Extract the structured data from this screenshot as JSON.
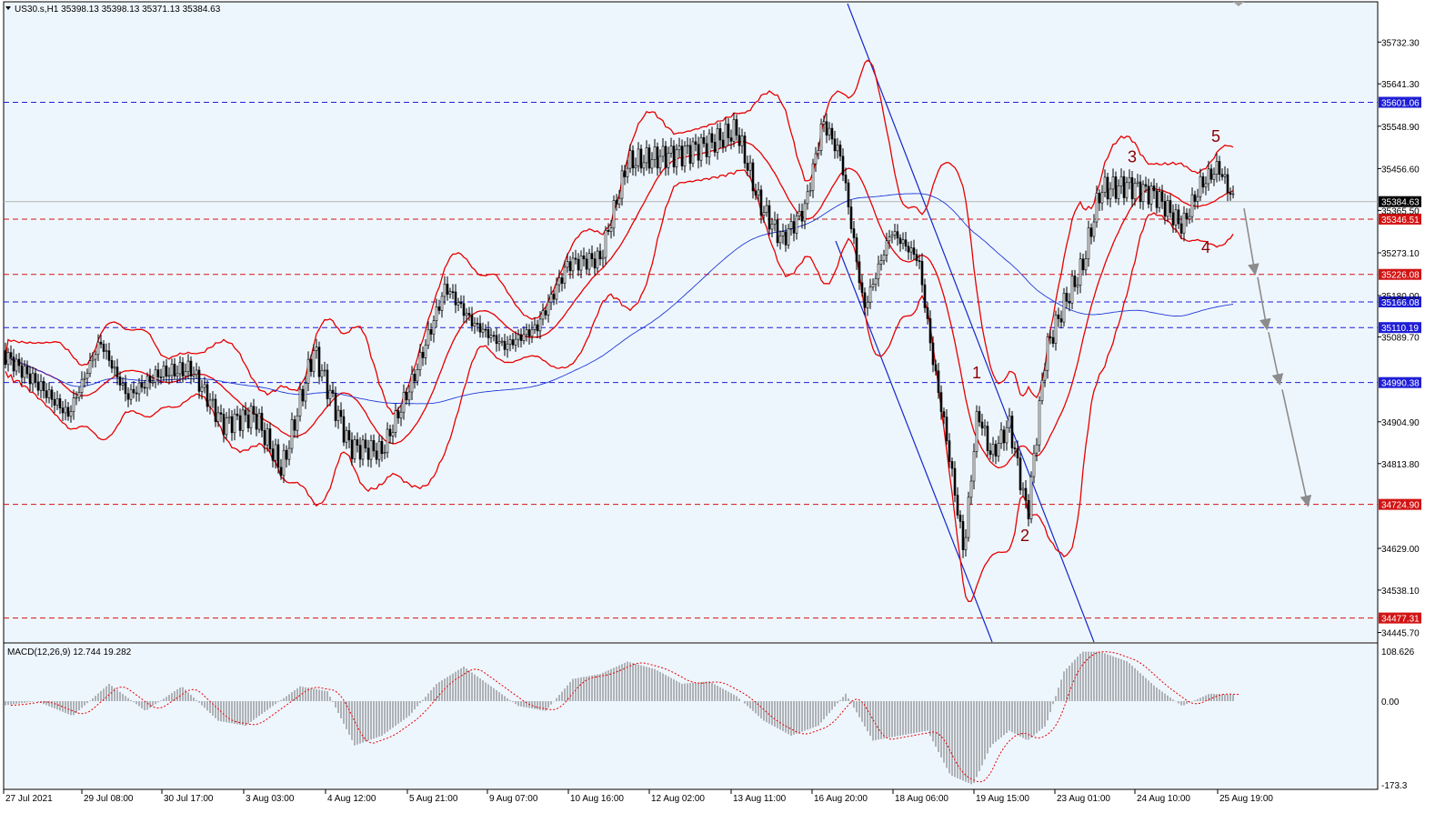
{
  "header": {
    "symbol_info": "US30.s,H1  35398.13 35398.13 35371.13 35384.63"
  },
  "macd": {
    "label": "MACD(12,26,9) 12.744 19.282",
    "scale_labels": [
      "108.626",
      "0.00",
      "-173.3"
    ]
  },
  "colors": {
    "background": "#eef6fd",
    "bollinger": "#e60000",
    "ma": "#1f3bd6",
    "channel": "#1428c8",
    "hline_blue": "#1f1fd6",
    "hline_red": "#d21414",
    "arrow": "#8c8c8c",
    "wave_label": "#8b0000",
    "current_price_tag": "#000000"
  },
  "chart_data": {
    "type": "candlestick",
    "title": "US30.s,H1",
    "ohlc_last": {
      "open": 35398.13,
      "high": 35398.13,
      "low": 35371.13,
      "close": 35384.63
    },
    "x_tick_labels": [
      "27 Jul 2021",
      "29 Jul 08:00",
      "30 Jul 17:00",
      "3 Aug 03:00",
      "4 Aug 12:00",
      "5 Aug 21:00",
      "9 Aug 07:00",
      "10 Aug 16:00",
      "12 Aug 02:00",
      "13 Aug 11:00",
      "16 Aug 20:00",
      "18 Aug 06:00",
      "19 Aug 15:00",
      "23 Aug 01:00",
      "24 Aug 10:00",
      "25 Aug 19:00"
    ],
    "y_tick_labels": [
      35732.3,
      35641.3,
      35548.9,
      35456.6,
      35365.5,
      35273.1,
      35180.0,
      35089.7,
      34904.9,
      34813.8,
      34629.0,
      34538.1,
      34445.7
    ],
    "ylim": [
      34425,
      35820
    ],
    "price_series_x": [
      0,
      40,
      75,
      110,
      140,
      175,
      210,
      245,
      280,
      310,
      345,
      385,
      420,
      455,
      490,
      520,
      555,
      590,
      625,
      660,
      690,
      720,
      750,
      780,
      810,
      835,
      860,
      885,
      905,
      925,
      950,
      980,
      1010,
      1025,
      1040,
      1060,
      1075,
      1090,
      1110,
      1130,
      1150,
      1170,
      1190,
      1210,
      1240,
      1270,
      1300,
      1320,
      1340,
      1357
    ],
    "close_series": [
      35060,
      34990,
      34920,
      35080,
      34960,
      35010,
      35020,
      34900,
      34920,
      34800,
      35060,
      34850,
      34840,
      35000,
      35200,
      35120,
      35070,
      35110,
      35250,
      35260,
      35470,
      35480,
      35490,
      35510,
      35540,
      35380,
      35300,
      35370,
      35560,
      35480,
      35150,
      35320,
      35260,
      35050,
      34880,
      34620,
      34930,
      34830,
      34900,
      34700,
      35060,
      35160,
      35240,
      35410,
      35420,
      35400,
      35330,
      35420,
      35460,
      35384.63
    ],
    "horizontal_levels": [
      {
        "price": 35601.06,
        "label": "35601.06",
        "style": "blue-dashed"
      },
      {
        "price": 35346.51,
        "label": "35346.51",
        "style": "red-dashed"
      },
      {
        "price": 35226.08,
        "label": "35226.08",
        "style": "red-dashed"
      },
      {
        "price": 35166.08,
        "label": "35166.08",
        "style": "blue-dashed"
      },
      {
        "price": 35110.19,
        "label": "35110.19",
        "style": "blue-dashed"
      },
      {
        "price": 34990.38,
        "label": "34990.38",
        "style": "blue-dashed"
      },
      {
        "price": 34724.9,
        "label": "34724.90",
        "style": "red-dashed"
      },
      {
        "price": 34477.31,
        "label": "34477.31",
        "style": "red-dashed"
      }
    ],
    "current_price": {
      "price": 35384.63,
      "label": "35384.63"
    },
    "wave_labels": [
      {
        "text": "1",
        "x": 1074,
        "price": 35000
      },
      {
        "text": "2",
        "x": 1127,
        "price": 34645
      },
      {
        "text": "3",
        "x": 1245,
        "price": 35470
      },
      {
        "text": "4",
        "x": 1326,
        "price": 35273
      },
      {
        "text": "5",
        "x": 1337,
        "price": 35515
      }
    ],
    "projection_arrows": [
      {
        "from": [
          1368,
          35370
        ],
        "to": [
          1380,
          35230
        ]
      },
      {
        "from": [
          1383,
          35220
        ],
        "to": [
          1393,
          35110
        ]
      },
      {
        "from": [
          1395,
          35100
        ],
        "to": [
          1407,
          34990
        ]
      },
      {
        "from": [
          1410,
          34975
        ],
        "to": [
          1438,
          34724.9
        ]
      }
    ],
    "macd": {
      "params": "12,26,9",
      "main": 12.744,
      "signal": 19.282,
      "ylim": [
        -173.3,
        108.626
      ],
      "x": [
        0,
        40,
        80,
        120,
        160,
        200,
        240,
        270,
        300,
        330,
        360,
        390,
        420,
        450,
        480,
        510,
        540,
        570,
        600,
        630,
        660,
        690,
        720,
        750,
        780,
        810,
        840,
        870,
        900,
        930,
        960,
        990,
        1020,
        1045,
        1070,
        1090,
        1110,
        1130,
        1150,
        1170,
        1190,
        1210,
        1240,
        1270,
        1300,
        1330,
        1357
      ],
      "histogram": [
        -10,
        0,
        -30,
        35,
        -20,
        30,
        -40,
        -50,
        -10,
        30,
        20,
        -90,
        -70,
        -30,
        35,
        70,
        30,
        -10,
        -20,
        45,
        55,
        80,
        65,
        35,
        40,
        10,
        -40,
        -70,
        -50,
        15,
        -80,
        -70,
        -60,
        -150,
        -170,
        -90,
        -60,
        -80,
        -50,
        60,
        100,
        100,
        80,
        30,
        -10,
        15,
        12.744
      ]
    },
    "bollinger_note": "Upper/middle/lower bands drawn in red; moving average in blue"
  }
}
